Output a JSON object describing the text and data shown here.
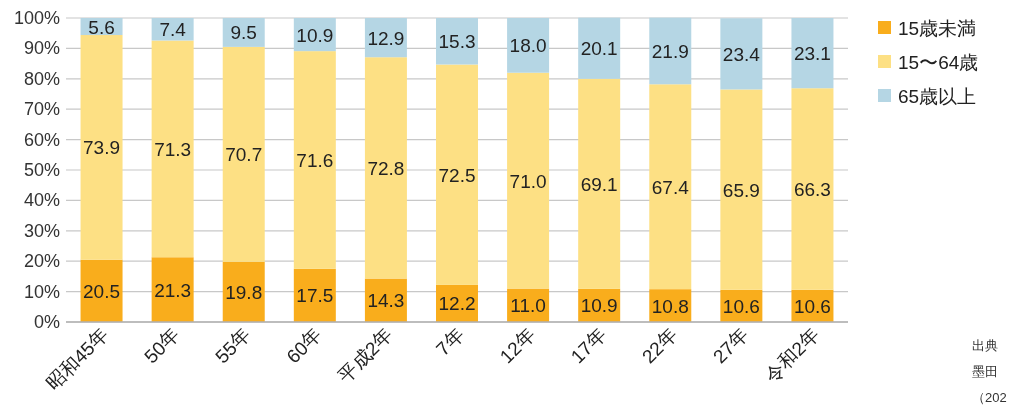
{
  "chart_data": {
    "type": "bar",
    "stacked": true,
    "categories": [
      "昭和45年",
      "50年",
      "55年",
      "60年",
      "平成2年",
      "7年",
      "12年",
      "17年",
      "22年",
      "27年",
      "令和2年"
    ],
    "series": [
      {
        "name": "15歳未満",
        "color": "#f9ad1c",
        "values": [
          20.5,
          21.3,
          19.8,
          17.5,
          14.3,
          12.2,
          11.0,
          10.9,
          10.8,
          10.6,
          10.6
        ],
        "value_labels": [
          "20.5",
          "21.3",
          "19.8",
          "17.5",
          "14.3",
          "12.2",
          "11.0",
          "10.9",
          "10.8",
          "10.6",
          "10.6"
        ]
      },
      {
        "name": "15〜64歳",
        "color": "#fde084",
        "values": [
          73.9,
          71.3,
          70.7,
          71.6,
          72.8,
          72.5,
          71.0,
          69.1,
          67.4,
          65.9,
          66.3
        ],
        "value_labels": [
          "73.9",
          "71.3",
          "70.7",
          "71.6",
          "72.8",
          "72.5",
          "71.0",
          "69.1",
          "67.4",
          "65.9",
          "66.3"
        ]
      },
      {
        "name": "65歳以上",
        "color": "#b5d6e4",
        "values": [
          5.6,
          7.4,
          9.5,
          10.9,
          12.9,
          15.3,
          18.0,
          20.1,
          21.9,
          23.4,
          23.1
        ],
        "value_labels": [
          "5.6",
          "7.4",
          "9.5",
          "10.9",
          "12.9",
          "15.3",
          "18.0",
          "20.1",
          "21.9",
          "23.4",
          "23.1"
        ]
      }
    ],
    "ylim": [
      0,
      100
    ],
    "yticks": [
      {
        "value": 0,
        "label": "0%"
      },
      {
        "value": 10,
        "label": "10%"
      },
      {
        "value": 20,
        "label": "20%"
      },
      {
        "value": 30,
        "label": "30%"
      },
      {
        "value": 40,
        "label": "40%"
      },
      {
        "value": 50,
        "label": "50%"
      },
      {
        "value": 60,
        "label": "60%"
      },
      {
        "value": 70,
        "label": "70%"
      },
      {
        "value": 80,
        "label": "80%"
      },
      {
        "value": 90,
        "label": "90%"
      },
      {
        "value": 100,
        "label": "100%"
      }
    ],
    "grid": "y",
    "legend": "right",
    "annotations": [
      "出典",
      "墨田",
      "（202"
    ]
  }
}
